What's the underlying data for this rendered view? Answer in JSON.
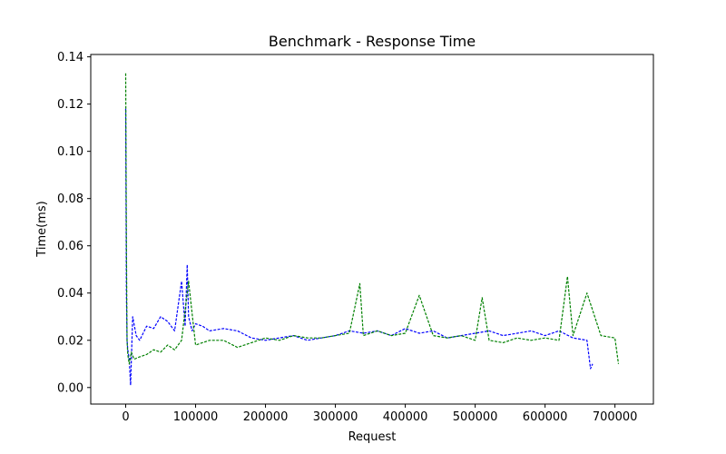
{
  "chart_data": {
    "type": "line",
    "title": "Benchmark - Response Time",
    "xlabel": "Request",
    "ylabel": "Time(ms)",
    "xlim": [
      -50000,
      755000
    ],
    "ylim": [
      -0.007,
      0.141
    ],
    "x_ticks": [
      0,
      100000,
      200000,
      300000,
      400000,
      500000,
      600000,
      700000
    ],
    "x_tick_labels": [
      "0",
      "100000",
      "200000",
      "300000",
      "400000",
      "500000",
      "600000",
      "700000"
    ],
    "y_ticks": [
      0.0,
      0.02,
      0.04,
      0.06,
      0.08,
      0.1,
      0.12,
      0.14
    ],
    "y_tick_labels": [
      "0.00",
      "0.02",
      "0.04",
      "0.06",
      "0.08",
      "0.10",
      "0.12",
      "0.14"
    ],
    "grid": false,
    "line_style": "dashed",
    "series": [
      {
        "color": "#0000ff",
        "x": [
          0,
          1000,
          2000,
          3000,
          5000,
          7000,
          10000,
          15000,
          20000,
          30000,
          40000,
          50000,
          60000,
          70000,
          80000,
          85000,
          88000,
          90000,
          95000,
          100000,
          110000,
          120000,
          140000,
          160000,
          180000,
          200000,
          220000,
          240000,
          260000,
          280000,
          300000,
          320000,
          340000,
          360000,
          380000,
          400000,
          420000,
          440000,
          460000,
          480000,
          500000,
          520000,
          540000,
          560000,
          580000,
          600000,
          620000,
          640000,
          660000,
          665000,
          668000
        ],
        "values": [
          0.118,
          0.04,
          0.02,
          0.016,
          0.012,
          0.001,
          0.03,
          0.022,
          0.02,
          0.026,
          0.025,
          0.03,
          0.028,
          0.024,
          0.045,
          0.026,
          0.052,
          0.03,
          0.024,
          0.027,
          0.026,
          0.024,
          0.025,
          0.024,
          0.021,
          0.02,
          0.021,
          0.022,
          0.02,
          0.021,
          0.022,
          0.024,
          0.023,
          0.024,
          0.022,
          0.025,
          0.023,
          0.024,
          0.021,
          0.022,
          0.023,
          0.024,
          0.022,
          0.023,
          0.024,
          0.022,
          0.024,
          0.021,
          0.02,
          0.008,
          0.01
        ]
      },
      {
        "color": "#008000",
        "x": [
          0,
          1000,
          2000,
          3000,
          5000,
          8000,
          12000,
          20000,
          30000,
          40000,
          50000,
          60000,
          70000,
          80000,
          90000,
          100000,
          120000,
          140000,
          160000,
          180000,
          200000,
          220000,
          240000,
          260000,
          280000,
          300000,
          320000,
          335000,
          340000,
          360000,
          380000,
          400000,
          420000,
          440000,
          460000,
          480000,
          500000,
          510000,
          520000,
          540000,
          560000,
          580000,
          600000,
          620000,
          632000,
          640000,
          660000,
          680000,
          700000,
          705000
        ],
        "values": [
          0.133,
          0.06,
          0.02,
          0.014,
          0.01,
          0.015,
          0.012,
          0.013,
          0.014,
          0.016,
          0.015,
          0.018,
          0.016,
          0.02,
          0.045,
          0.018,
          0.02,
          0.02,
          0.017,
          0.019,
          0.021,
          0.02,
          0.022,
          0.021,
          0.021,
          0.022,
          0.023,
          0.044,
          0.022,
          0.024,
          0.022,
          0.023,
          0.039,
          0.022,
          0.021,
          0.022,
          0.02,
          0.038,
          0.02,
          0.019,
          0.021,
          0.02,
          0.021,
          0.02,
          0.047,
          0.022,
          0.04,
          0.022,
          0.021,
          0.01
        ]
      }
    ]
  }
}
